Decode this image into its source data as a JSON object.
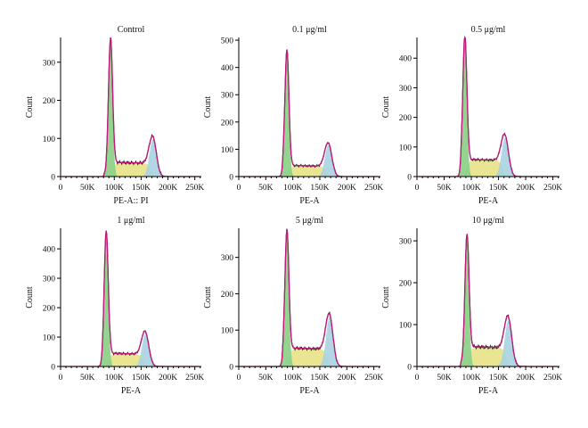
{
  "colors": {
    "g1": "#8ed18a",
    "s_phase": "#e9e48c",
    "g2": "#a8d3e2",
    "fit": "#c2187c",
    "data": "#1a1a1a"
  },
  "chart_data": [
    {
      "type": "histogram",
      "title": "Control",
      "xlabel": "PE-A:: PI",
      "ylabel": "Count",
      "xlim": [
        0,
        262144
      ],
      "ylim": [
        0,
        365
      ],
      "xticks": [
        0,
        50000,
        100000,
        150000,
        200000,
        250000
      ],
      "xtick_labels": [
        "0",
        "50K",
        "100K",
        "150K",
        "200K",
        "250K"
      ],
      "yticks": [
        0,
        100,
        200,
        300
      ],
      "peaks": {
        "g1_pos": 93000,
        "g1_height": 355,
        "g2_pos": 172000,
        "g2_height": 98,
        "s_level": 35
      },
      "grid": false
    },
    {
      "type": "histogram",
      "title": "0.1 μg/ml",
      "xlabel": "PE-A",
      "ylabel": "Count",
      "xlim": [
        0,
        262144
      ],
      "ylim": [
        0,
        510
      ],
      "xticks": [
        0,
        50000,
        100000,
        150000,
        200000,
        250000
      ],
      "xtick_labels": [
        "0",
        "50K",
        "100K",
        "150K",
        "200K",
        "250K"
      ],
      "yticks": [
        0,
        100,
        200,
        300,
        400,
        500
      ],
      "peaks": {
        "g1_pos": 89000,
        "g1_height": 455,
        "g2_pos": 166000,
        "g2_height": 115,
        "s_level": 38
      },
      "grid": false
    },
    {
      "type": "histogram",
      "title": "0.5 μg/ml",
      "xlabel": "PE-A",
      "ylabel": "Count",
      "xlim": [
        0,
        262144
      ],
      "ylim": [
        0,
        470
      ],
      "xticks": [
        0,
        50000,
        100000,
        150000,
        200000,
        250000
      ],
      "xtick_labels": [
        "0",
        "50K",
        "100K",
        "150K",
        "200K",
        "250K"
      ],
      "yticks": [
        0,
        100,
        200,
        300,
        400
      ],
      "peaks": {
        "g1_pos": 88000,
        "g1_height": 465,
        "g2_pos": 162000,
        "g2_height": 130,
        "s_level": 55
      },
      "grid": false
    },
    {
      "type": "histogram",
      "title": "1 μg/ml",
      "xlabel": "PE-A",
      "ylabel": "Count",
      "xlim": [
        0,
        262144
      ],
      "ylim": [
        0,
        470
      ],
      "xticks": [
        0,
        50000,
        100000,
        150000,
        200000,
        250000
      ],
      "xtick_labels": [
        "0",
        "50K",
        "100K",
        "150K",
        "200K",
        "250K"
      ],
      "yticks": [
        0,
        100,
        200,
        300,
        400
      ],
      "peaks": {
        "g1_pos": 85000,
        "g1_height": 450,
        "g2_pos": 158000,
        "g2_height": 110,
        "s_level": 42
      },
      "grid": false
    },
    {
      "type": "histogram",
      "title": "5 μg/ml",
      "xlabel": "PE-A",
      "ylabel": "Count",
      "xlim": [
        0,
        262144
      ],
      "ylim": [
        0,
        380
      ],
      "xticks": [
        0,
        50000,
        100000,
        150000,
        200000,
        250000
      ],
      "xtick_labels": [
        "0",
        "50K",
        "100K",
        "150K",
        "200K",
        "250K"
      ],
      "yticks": [
        0,
        100,
        200,
        300
      ],
      "peaks": {
        "g1_pos": 89000,
        "g1_height": 365,
        "g2_pos": 168000,
        "g2_height": 135,
        "s_level": 48
      },
      "grid": false
    },
    {
      "type": "histogram",
      "title": "10 μg/ml",
      "xlabel": "PE-A",
      "ylabel": "Count",
      "xlim": [
        0,
        262144
      ],
      "ylim": [
        0,
        330
      ],
      "xticks": [
        0,
        50000,
        100000,
        150000,
        200000,
        250000
      ],
      "xtick_labels": [
        "0",
        "50K",
        "100K",
        "150K",
        "200K",
        "250K"
      ],
      "yticks": [
        0,
        100,
        200,
        300
      ],
      "peaks": {
        "g1_pos": 92000,
        "g1_height": 305,
        "g2_pos": 168000,
        "g2_height": 110,
        "s_level": 45
      },
      "grid": false
    }
  ]
}
